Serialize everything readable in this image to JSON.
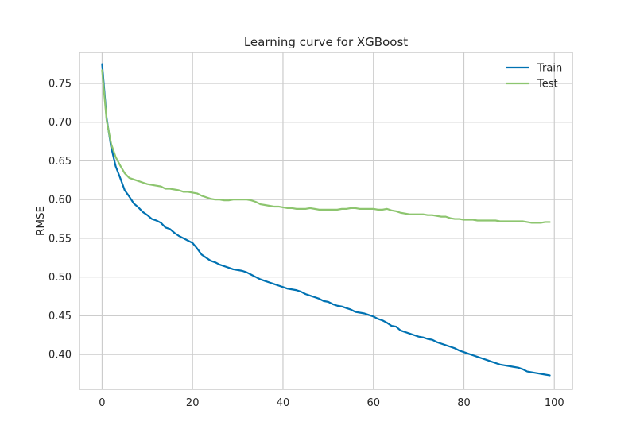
{
  "chart_data": {
    "type": "line",
    "title": "Learning curve for XGBoost",
    "xlabel": "",
    "ylabel": "RMSE",
    "xlim": [
      -5,
      104
    ],
    "ylim": [
      0.355,
      0.79
    ],
    "xticks": [
      0,
      20,
      40,
      60,
      80,
      100
    ],
    "yticks": [
      0.4,
      0.45,
      0.5,
      0.55,
      0.6,
      0.65,
      0.7,
      0.75
    ],
    "xtick_labels": [
      "0",
      "20",
      "40",
      "60",
      "80",
      "100"
    ],
    "ytick_labels": [
      "0.40",
      "0.45",
      "0.50",
      "0.55",
      "0.60",
      "0.65",
      "0.70",
      "0.75"
    ],
    "grid": true,
    "legend_position": "top-right",
    "series": [
      {
        "name": "Train",
        "color": "#0072b2",
        "x": [
          0,
          1,
          2,
          3,
          4,
          5,
          6,
          7,
          8,
          9,
          10,
          11,
          12,
          13,
          14,
          15,
          16,
          17,
          18,
          19,
          20,
          21,
          22,
          23,
          24,
          25,
          26,
          27,
          28,
          29,
          30,
          31,
          32,
          33,
          34,
          35,
          36,
          37,
          38,
          39,
          40,
          41,
          42,
          43,
          44,
          45,
          46,
          47,
          48,
          49,
          50,
          51,
          52,
          53,
          54,
          55,
          56,
          57,
          58,
          59,
          60,
          61,
          62,
          63,
          64,
          65,
          66,
          67,
          68,
          69,
          70,
          71,
          72,
          73,
          74,
          75,
          76,
          77,
          78,
          79,
          80,
          81,
          82,
          83,
          84,
          85,
          86,
          87,
          88,
          89,
          90,
          91,
          92,
          93,
          94,
          95,
          96,
          97,
          98,
          99
        ],
        "values": [
          0.775,
          0.705,
          0.668,
          0.643,
          0.628,
          0.612,
          0.604,
          0.595,
          0.59,
          0.584,
          0.58,
          0.575,
          0.573,
          0.57,
          0.564,
          0.562,
          0.557,
          0.553,
          0.55,
          0.547,
          0.544,
          0.537,
          0.529,
          0.525,
          0.521,
          0.519,
          0.516,
          0.514,
          0.512,
          0.51,
          0.509,
          0.508,
          0.506,
          0.503,
          0.5,
          0.497,
          0.495,
          0.493,
          0.491,
          0.489,
          0.487,
          0.485,
          0.484,
          0.483,
          0.481,
          0.478,
          0.476,
          0.474,
          0.472,
          0.469,
          0.468,
          0.465,
          0.463,
          0.462,
          0.46,
          0.458,
          0.455,
          0.454,
          0.453,
          0.451,
          0.449,
          0.446,
          0.444,
          0.441,
          0.437,
          0.436,
          0.431,
          0.429,
          0.427,
          0.425,
          0.423,
          0.422,
          0.42,
          0.419,
          0.416,
          0.414,
          0.412,
          0.41,
          0.408,
          0.405,
          0.403,
          0.401,
          0.399,
          0.397,
          0.395,
          0.393,
          0.391,
          0.389,
          0.387,
          0.386,
          0.385,
          0.384,
          0.383,
          0.381,
          0.378,
          0.377,
          0.376,
          0.375,
          0.374,
          0.373
        ]
      },
      {
        "name": "Test",
        "color": "#8dc56f",
        "x": [
          0,
          1,
          2,
          3,
          4,
          5,
          6,
          7,
          8,
          9,
          10,
          11,
          12,
          13,
          14,
          15,
          16,
          17,
          18,
          19,
          20,
          21,
          22,
          23,
          24,
          25,
          26,
          27,
          28,
          29,
          30,
          31,
          32,
          33,
          34,
          35,
          36,
          37,
          38,
          39,
          40,
          41,
          42,
          43,
          44,
          45,
          46,
          47,
          48,
          49,
          50,
          51,
          52,
          53,
          54,
          55,
          56,
          57,
          58,
          59,
          60,
          61,
          62,
          63,
          64,
          65,
          66,
          67,
          68,
          69,
          70,
          71,
          72,
          73,
          74,
          75,
          76,
          77,
          78,
          79,
          80,
          81,
          82,
          83,
          84,
          85,
          86,
          87,
          88,
          89,
          90,
          91,
          92,
          93,
          94,
          95,
          96,
          97,
          98,
          99
        ],
        "values": [
          0.767,
          0.702,
          0.672,
          0.655,
          0.644,
          0.634,
          0.628,
          0.626,
          0.624,
          0.622,
          0.62,
          0.619,
          0.618,
          0.617,
          0.614,
          0.614,
          0.613,
          0.612,
          0.61,
          0.61,
          0.609,
          0.608,
          0.605,
          0.603,
          0.601,
          0.6,
          0.6,
          0.599,
          0.599,
          0.6,
          0.6,
          0.6,
          0.6,
          0.599,
          0.597,
          0.594,
          0.593,
          0.592,
          0.591,
          0.591,
          0.59,
          0.589,
          0.589,
          0.588,
          0.588,
          0.588,
          0.589,
          0.588,
          0.587,
          0.587,
          0.587,
          0.587,
          0.587,
          0.588,
          0.588,
          0.589,
          0.589,
          0.588,
          0.588,
          0.588,
          0.588,
          0.587,
          0.587,
          0.588,
          0.586,
          0.585,
          0.583,
          0.582,
          0.581,
          0.581,
          0.581,
          0.581,
          0.58,
          0.58,
          0.579,
          0.578,
          0.578,
          0.576,
          0.575,
          0.575,
          0.574,
          0.574,
          0.574,
          0.573,
          0.573,
          0.573,
          0.573,
          0.573,
          0.572,
          0.572,
          0.572,
          0.572,
          0.572,
          0.572,
          0.571,
          0.57,
          0.57,
          0.57,
          0.571,
          0.571
        ]
      }
    ]
  }
}
